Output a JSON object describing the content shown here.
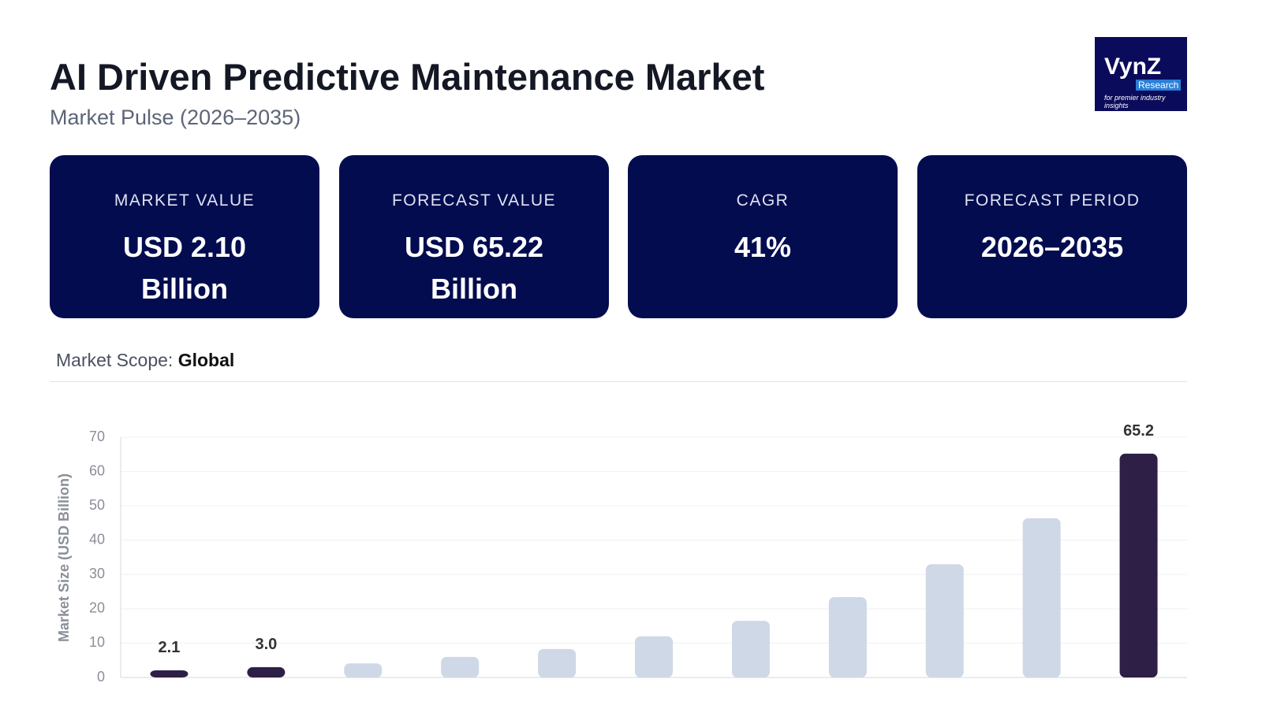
{
  "header": {
    "title": "AI Driven Predictive Maintenance Market",
    "subtitle": "Market Pulse (2026–2035)"
  },
  "logo": {
    "name": "VynZ",
    "tagline": "Research",
    "motto": "for premier industry insights"
  },
  "cards": [
    {
      "label": "MARKET VALUE",
      "value": "USD 2.10 Billion"
    },
    {
      "label": "FORECAST VALUE",
      "value": "USD 65.22 Billion"
    },
    {
      "label": "CAGR",
      "value": "41%"
    },
    {
      "label": "FORECAST PERIOD",
      "value": "2026–2035"
    }
  ],
  "scope": {
    "label": "Market Scope:",
    "value": "Global"
  },
  "chart_data": {
    "type": "bar",
    "ylabel": "Market Size (USD Billion)",
    "categories": [
      null,
      null,
      null,
      null,
      null,
      null,
      null,
      null,
      null,
      null,
      null
    ],
    "values": [
      2.1,
      3.0,
      4.1,
      6.0,
      8.3,
      12.0,
      16.5,
      23.4,
      33.0,
      46.4,
      65.2
    ],
    "value_labels": [
      "2.1",
      "3.0",
      null,
      null,
      null,
      null,
      null,
      null,
      null,
      null,
      "65.2"
    ],
    "colors": [
      "#2e1f47",
      "#2e1f47",
      "#cfd8e6",
      "#cfd8e6",
      "#cfd8e6",
      "#cfd8e6",
      "#cfd8e6",
      "#cfd8e6",
      "#cfd8e6",
      "#cfd8e6",
      "#2e1f47"
    ],
    "ylim": [
      0,
      70
    ],
    "yticks": [
      0,
      10,
      20,
      30,
      40,
      50,
      60,
      70
    ],
    "grid": true
  }
}
